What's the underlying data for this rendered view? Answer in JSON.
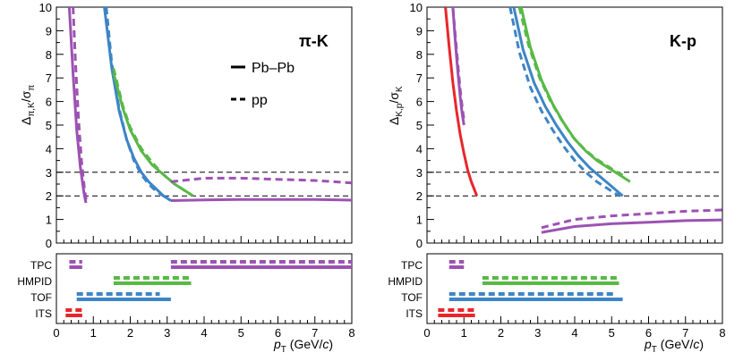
{
  "chart_data": [
    {
      "type": "line",
      "title": "π-K",
      "ylabel_main": "Δ",
      "ylabel_sub": "π,K",
      "ylabel_mid": "/σ",
      "ylabel_sub2": "π",
      "xlabel_p": "p",
      "xlabel_sub": "T",
      "xlabel_units_open": " (GeV/",
      "xlabel_units_c": "c",
      "xlabel_units_close": ")",
      "xlim": [
        0,
        8
      ],
      "ylim": [
        0,
        10
      ],
      "x_ticks": [
        "0",
        "1",
        "2",
        "3",
        "4",
        "5",
        "6",
        "7",
        "8"
      ],
      "y_ticks": [
        "0",
        "1",
        "2",
        "3",
        "4",
        "5",
        "6",
        "7",
        "8",
        "9",
        "10"
      ],
      "reference_lines": [
        2,
        3
      ],
      "legend": [
        {
          "label": "Pb–Pb",
          "style": "solid"
        },
        {
          "label": "pp",
          "style": "dashed"
        }
      ],
      "colors": {
        "ITS": "#e8262b",
        "TOF": "#3d85c6",
        "HMPID": "#58b947",
        "TPC": "#9c52b2"
      },
      "series": [
        {
          "name": "TPC",
          "system": "Pb-Pb",
          "style": "solid",
          "x": [
            0.35,
            0.45,
            0.55,
            0.65,
            0.75,
            0.8
          ],
          "y": [
            10,
            7.2,
            4.8,
            3.2,
            2.1,
            1.7
          ]
        },
        {
          "name": "TPC",
          "system": "pp",
          "style": "dashed",
          "x": [
            0.45,
            0.52,
            0.6,
            0.68,
            0.76,
            0.82
          ],
          "y": [
            10,
            7.5,
            5.2,
            3.5,
            2.3,
            1.7
          ]
        },
        {
          "name": "TOF",
          "system": "Pb-Pb",
          "style": "solid",
          "x": [
            1.3,
            1.5,
            1.7,
            1.9,
            2.1,
            2.3,
            2.5,
            2.7,
            2.9,
            3.1
          ],
          "y": [
            10,
            7.4,
            5.6,
            4.4,
            3.6,
            3.0,
            2.6,
            2.3,
            2.0,
            1.8
          ]
        },
        {
          "name": "TOF",
          "system": "pp",
          "style": "dashed",
          "x": [
            1.35,
            1.5,
            1.7,
            1.9,
            2.1,
            2.3,
            2.5,
            2.7,
            2.9,
            3.1
          ],
          "y": [
            10,
            7.6,
            5.7,
            4.4,
            3.5,
            2.9,
            2.5,
            2.2,
            2.0,
            1.8
          ]
        },
        {
          "name": "HMPID",
          "system": "Pb-Pb",
          "style": "solid",
          "x": [
            1.55,
            1.8,
            2.0,
            2.3,
            2.6,
            2.9,
            3.2,
            3.5,
            3.7
          ],
          "y": [
            7.2,
            5.7,
            4.8,
            3.9,
            3.3,
            2.9,
            2.5,
            2.2,
            2.0
          ]
        },
        {
          "name": "HMPID",
          "system": "pp",
          "style": "dashed",
          "x": [
            1.55,
            1.8,
            2.0,
            2.3,
            2.6,
            2.9,
            3.2,
            3.5,
            3.7
          ],
          "y": [
            7.4,
            5.8,
            4.9,
            4.0,
            3.4,
            2.9,
            2.5,
            2.2,
            2.0
          ]
        },
        {
          "name": "TPC",
          "system": "Pb-Pb",
          "style": "solid",
          "x": [
            3.1,
            4,
            5,
            6,
            7,
            8
          ],
          "y": [
            1.8,
            1.83,
            1.85,
            1.85,
            1.85,
            1.82
          ]
        },
        {
          "name": "TPC",
          "system": "pp",
          "style": "dashed",
          "x": [
            3.1,
            4,
            5,
            6,
            7,
            8
          ],
          "y": [
            2.6,
            2.75,
            2.75,
            2.7,
            2.65,
            2.55
          ]
        }
      ],
      "detectors": [
        "TPC",
        "HMPID",
        "TOF",
        "ITS"
      ],
      "detector_ranges": [
        {
          "name": "TPC",
          "pbpb": [
            [
              0.35,
              0.7
            ],
            [
              3.1,
              8
            ]
          ],
          "pp": [
            [
              0.35,
              0.7
            ],
            [
              3.1,
              8
            ]
          ]
        },
        {
          "name": "HMPID",
          "pbpb": [
            [
              1.55,
              3.65
            ]
          ],
          "pp": [
            [
              1.55,
              3.65
            ]
          ]
        },
        {
          "name": "TOF",
          "pbpb": [
            [
              0.55,
              3.1
            ]
          ],
          "pp": [
            [
              0.55,
              2.8
            ]
          ]
        },
        {
          "name": "ITS",
          "pbpb": [
            [
              0.25,
              0.7
            ]
          ],
          "pp": [
            [
              0.25,
              0.7
            ]
          ]
        }
      ]
    },
    {
      "type": "line",
      "title": "K-p",
      "ylabel_main": "Δ",
      "ylabel_sub": "K,p",
      "ylabel_mid": "/σ",
      "ylabel_sub2": "K",
      "xlabel_p": "p",
      "xlabel_sub": "T",
      "xlabel_units_open": " (GeV/",
      "xlabel_units_c": "c",
      "xlabel_units_close": ")",
      "xlim": [
        0,
        8
      ],
      "ylim": [
        0,
        10
      ],
      "x_ticks": [
        "0",
        "1",
        "2",
        "3",
        "4",
        "5",
        "6",
        "7",
        "8"
      ],
      "y_ticks": [
        "0",
        "1",
        "2",
        "3",
        "4",
        "5",
        "6",
        "7",
        "8",
        "9",
        "10"
      ],
      "reference_lines": [
        2,
        3
      ],
      "colors": {
        "ITS": "#e8262b",
        "TOF": "#3d85c6",
        "HMPID": "#58b947",
        "TPC": "#9c52b2"
      },
      "series": [
        {
          "name": "ITS",
          "system": "Pb-Pb",
          "style": "solid",
          "x": [
            0.5,
            0.6,
            0.7,
            0.8,
            0.9,
            1.0,
            1.1,
            1.2,
            1.35
          ],
          "y": [
            10,
            8.3,
            6.8,
            5.6,
            4.6,
            3.8,
            3.1,
            2.6,
            2.0
          ]
        },
        {
          "name": "TPC",
          "system": "Pb-Pb",
          "style": "solid",
          "x": [
            0.7,
            0.75,
            0.8,
            0.85,
            0.9,
            0.95,
            1.0
          ],
          "y": [
            10,
            8.9,
            7.9,
            7.0,
            6.2,
            5.5,
            5.0
          ]
        },
        {
          "name": "TPC",
          "system": "pp",
          "style": "dashed",
          "x": [
            0.7,
            0.75,
            0.8,
            0.85,
            0.9,
            0.95,
            1.0
          ],
          "y": [
            10,
            9.1,
            8.2,
            7.3,
            6.5,
            5.8,
            5.2
          ]
        },
        {
          "name": "TOF",
          "system": "Pb-Pb",
          "style": "solid",
          "x": [
            2.35,
            2.6,
            2.9,
            3.2,
            3.5,
            3.8,
            4.1,
            4.4,
            4.7,
            5.0,
            5.3
          ],
          "y": [
            10,
            8.2,
            6.8,
            5.8,
            5.0,
            4.3,
            3.7,
            3.2,
            2.8,
            2.4,
            2.0
          ]
        },
        {
          "name": "TOF",
          "system": "pp",
          "style": "dashed",
          "x": [
            2.25,
            2.5,
            2.8,
            3.1,
            3.4,
            3.7,
            4.0,
            4.3,
            4.6,
            4.9,
            5.2
          ],
          "y": [
            10,
            8.1,
            6.6,
            5.6,
            4.8,
            4.1,
            3.5,
            3.0,
            2.6,
            2.3,
            2.0
          ]
        },
        {
          "name": "HMPID",
          "system": "Pb-Pb",
          "style": "solid",
          "x": [
            2.55,
            2.8,
            3.1,
            3.4,
            3.7,
            4.0,
            4.3,
            4.6,
            4.9,
            5.2,
            5.5
          ],
          "y": [
            10,
            8.3,
            6.9,
            5.9,
            5.1,
            4.4,
            3.9,
            3.5,
            3.2,
            2.9,
            2.6
          ]
        },
        {
          "name": "HMPID",
          "system": "pp",
          "style": "dashed",
          "x": [
            2.5,
            2.75,
            3.05,
            3.35,
            3.65,
            3.95,
            4.25,
            4.55,
            4.85,
            5.15,
            5.4
          ],
          "y": [
            10,
            8.4,
            7.0,
            6.0,
            5.2,
            4.5,
            4.0,
            3.6,
            3.3,
            3.0,
            2.8
          ]
        },
        {
          "name": "TPC",
          "system": "Pb-Pb",
          "style": "solid",
          "x": [
            3.1,
            4,
            5,
            6,
            7,
            8
          ],
          "y": [
            0.45,
            0.7,
            0.82,
            0.88,
            0.95,
            0.98
          ]
        },
        {
          "name": "TPC",
          "system": "pp",
          "style": "dashed",
          "x": [
            3.1,
            4,
            5,
            6,
            7,
            8
          ],
          "y": [
            0.65,
            1.0,
            1.15,
            1.25,
            1.35,
            1.4
          ]
        }
      ],
      "detectors": [
        "TPC",
        "HMPID",
        "TOF",
        "ITS"
      ],
      "detector_ranges": [
        {
          "name": "TPC",
          "pbpb": [
            [
              0.6,
              1.0
            ]
          ],
          "pp": [
            [
              0.6,
              1.0
            ]
          ]
        },
        {
          "name": "HMPID",
          "pbpb": [
            [
              1.5,
              5.2
            ]
          ],
          "pp": [
            [
              1.5,
              5.2
            ]
          ]
        },
        {
          "name": "TOF",
          "pbpb": [
            [
              0.6,
              5.3
            ]
          ],
          "pp": [
            [
              0.6,
              5.1
            ]
          ]
        },
        {
          "name": "ITS",
          "pbpb": [
            [
              0.3,
              1.3
            ]
          ],
          "pp": [
            [
              0.3,
              1.3
            ]
          ]
        }
      ]
    }
  ]
}
